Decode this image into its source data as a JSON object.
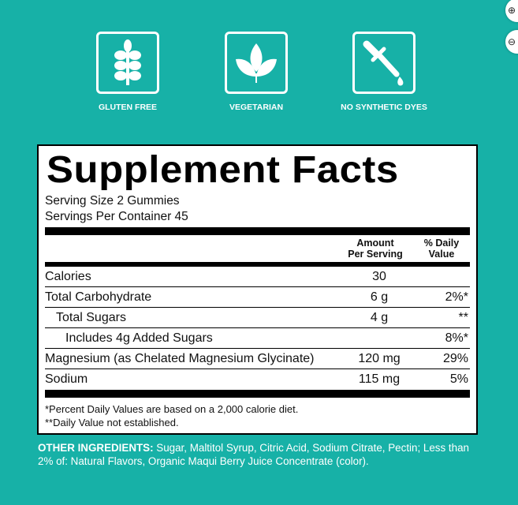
{
  "badges": [
    {
      "icon": "wheat-icon",
      "label": "GLUTEN FREE"
    },
    {
      "icon": "leaf-icon",
      "label": "VEGETARIAN"
    },
    {
      "icon": "dropper-icon",
      "label": "NO SYNTHETIC DYES"
    }
  ],
  "colors": {
    "background": "#17b1a7",
    "panel": "#ffffff",
    "text": "#000000"
  },
  "facts": {
    "title": "Supplement Facts",
    "serving_size": "Serving Size 2 Gummies",
    "servings_per_container": "Servings Per Container 45",
    "header_amount_1": "Amount",
    "header_amount_2": "Per Serving",
    "header_dv_1": "% Daily",
    "header_dv_2": "Value",
    "rows": [
      {
        "name": "Calories",
        "amount": "30",
        "dv": ""
      },
      {
        "name": "Total Carbohydrate",
        "amount": "6 g",
        "dv": "2%*"
      },
      {
        "name": "Total Sugars",
        "amount": "4 g",
        "dv": "**"
      },
      {
        "name": "Includes 4g Added Sugars",
        "amount": "",
        "dv": "8%*"
      },
      {
        "name": "Magnesium (as Chelated Magnesium Glycinate)",
        "amount": "120 mg",
        "dv": "29%"
      },
      {
        "name": "Sodium",
        "amount": "115 mg",
        "dv": "5%"
      }
    ],
    "footnote_1": "*Percent Daily Values are based on a 2,000 calorie diet.",
    "footnote_2": "**Daily Value not established."
  },
  "other_ingredients": {
    "label": "OTHER INGREDIENTS:",
    "text": " Sugar, Maltitol Syrup, Citric Acid, Sodium Citrate, Pectin; Less than 2% of: Natural Flavors, Organic Maqui Berry Juice Concentrate (color)."
  }
}
